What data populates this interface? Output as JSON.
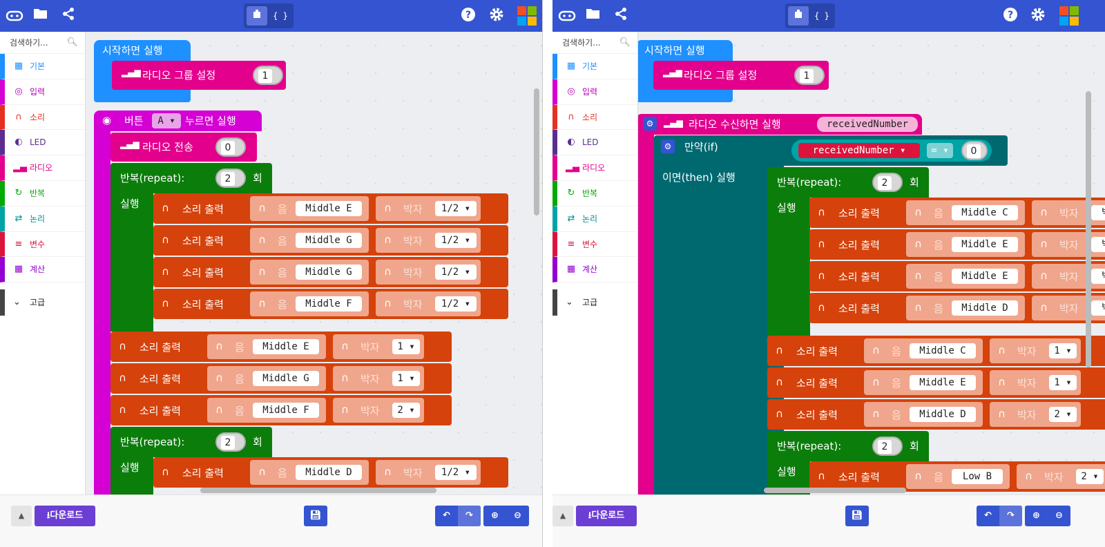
{
  "toolbar": {
    "mode_blocks_label": "⬛",
    "mode_js_label": "{ }"
  },
  "toolbox": {
    "search_placeholder": "검색하기...",
    "categories": [
      {
        "label": "기본",
        "color": "#1e90ff"
      },
      {
        "label": "입력",
        "color": "#d400d4"
      },
      {
        "label": "소리",
        "color": "#e63022"
      },
      {
        "label": "LED",
        "color": "#5c2d91"
      },
      {
        "label": "라디오",
        "color": "#e3008c"
      },
      {
        "label": "반복",
        "color": "#00aa00"
      },
      {
        "label": "논리",
        "color": "#00a4a6"
      },
      {
        "label": "변수",
        "color": "#dc143c"
      },
      {
        "label": "계산",
        "color": "#9400d3"
      }
    ],
    "advanced_label": "고급"
  },
  "bottom": {
    "download_label": "다운로드"
  },
  "left": {
    "on_start_label": "시작하면 실행",
    "radio_group_label": "라디오 그룹 설정",
    "radio_group_value": "1",
    "on_button_pre": "버튼",
    "on_button_key": "A",
    "on_button_post": "누르면 실행",
    "radio_send_label": "라디오 전송",
    "radio_send_value": "0",
    "repeat_label": "반복(repeat):",
    "repeat_count": "2",
    "repeat_times": "회",
    "do_label": "실행",
    "play_label": "소리 출력",
    "note_label": "음",
    "beat_label": "박자",
    "notes1": [
      {
        "note": "Middle E",
        "beat": "1/2"
      },
      {
        "note": "Middle G",
        "beat": "1/2"
      },
      {
        "note": "Middle G",
        "beat": "1/2"
      },
      {
        "note": "Middle F",
        "beat": "1/2"
      }
    ],
    "notes2": [
      {
        "note": "Middle E",
        "beat": "1"
      },
      {
        "note": "Middle G",
        "beat": "1"
      },
      {
        "note": "Middle F",
        "beat": "2"
      }
    ],
    "repeat2_count": "2",
    "notes3": [
      {
        "note": "Middle D",
        "beat": "1/2"
      }
    ]
  },
  "right": {
    "on_start_label": "시작하면 실행",
    "radio_group_label": "라디오 그룹 설정",
    "radio_group_value": "1",
    "on_receive_label": "라디오 수신하면 실행",
    "received_var": "receivedNumber",
    "if_label": "만약(if)",
    "then_label": "이면(then) 실행",
    "cond_var": "receivedNumber",
    "cond_op": "=",
    "cond_value": "0",
    "repeat_label": "반복(repeat):",
    "repeat_count": "2",
    "repeat_times": "회",
    "do_label": "실행",
    "play_label": "소리 출력",
    "note_label": "음",
    "beat_label": "박자",
    "notes1": [
      {
        "note": "Middle C",
        "beat": "박"
      },
      {
        "note": "Middle E",
        "beat": "박"
      },
      {
        "note": "Middle E",
        "beat": "박"
      },
      {
        "note": "Middle D",
        "beat": "박"
      }
    ],
    "notes2": [
      {
        "note": "Middle C",
        "beat": "1"
      },
      {
        "note": "Middle E",
        "beat": "1"
      },
      {
        "note": "Middle D",
        "beat": "2"
      }
    ],
    "repeat2_count": "2",
    "notes3": [
      {
        "note": "Low B",
        "beat": "2"
      }
    ]
  }
}
